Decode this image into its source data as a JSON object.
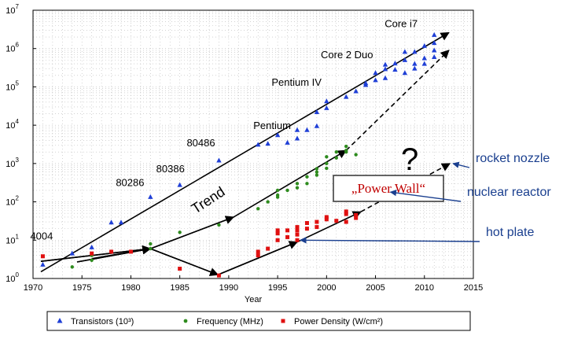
{
  "chart_data": {
    "type": "scatter",
    "xlabel": "Year",
    "ylabel": "",
    "xlim": [
      1970,
      2015
    ],
    "ylim": [
      1,
      10000000
    ],
    "yscale": "log",
    "grid": true,
    "x_ticks": [
      "1970",
      "1975",
      "1980",
      "1985",
      "1990",
      "1995",
      "2000",
      "2005",
      "2010",
      "2015"
    ],
    "y_ticks": [
      {
        "base": "10",
        "exp": "0"
      },
      {
        "base": "10",
        "exp": "1"
      },
      {
        "base": "10",
        "exp": "2"
      },
      {
        "base": "10",
        "exp": "3"
      },
      {
        "base": "10",
        "exp": "4"
      },
      {
        "base": "10",
        "exp": "5"
      },
      {
        "base": "10",
        "exp": "6"
      },
      {
        "base": "10",
        "exp": "7"
      }
    ],
    "series": [
      {
        "name": "Transistors (10³)",
        "color": "#1f3fd6",
        "marker": "triangle",
        "points": [
          [
            1971,
            2.3
          ],
          [
            1974,
            4.5
          ],
          [
            1976,
            6.5
          ],
          [
            1978,
            29
          ],
          [
            1979,
            29
          ],
          [
            1982,
            134
          ],
          [
            1985,
            275
          ],
          [
            1989,
            1200
          ],
          [
            1993,
            3100
          ],
          [
            1994,
            3300
          ],
          [
            1995,
            5500
          ],
          [
            1996,
            3500
          ],
          [
            1997,
            4500
          ],
          [
            1997,
            7500
          ],
          [
            1998,
            7500
          ],
          [
            1999,
            9500
          ],
          [
            1999,
            22000
          ],
          [
            2000,
            42000
          ],
          [
            2000,
            28000
          ],
          [
            2002,
            55000
          ],
          [
            2003,
            77000
          ],
          [
            2004,
            112000
          ],
          [
            2004,
            125000
          ],
          [
            2005,
            230000
          ],
          [
            2005,
            150000
          ],
          [
            2006,
            290000
          ],
          [
            2006,
            380000
          ],
          [
            2006,
            170000
          ],
          [
            2007,
            280000
          ],
          [
            2007,
            410000
          ],
          [
            2008,
            820000
          ],
          [
            2008,
            230000
          ],
          [
            2008,
            500000
          ],
          [
            2009,
            820000
          ],
          [
            2009,
            400000
          ],
          [
            2009,
            300000
          ],
          [
            2010,
            1170000
          ],
          [
            2010,
            400000
          ],
          [
            2010,
            560000
          ],
          [
            2011,
            2270000
          ],
          [
            2011,
            1400000
          ],
          [
            2011,
            900000
          ],
          [
            2011,
            600000
          ]
        ]
      },
      {
        "name": "Frequency (MHz)",
        "color": "#2e8b1e",
        "marker": "circle",
        "points": [
          [
            1974,
            2
          ],
          [
            1976,
            3
          ],
          [
            1976,
            4
          ],
          [
            1982,
            8
          ],
          [
            1982,
            6
          ],
          [
            1985,
            16
          ],
          [
            1989,
            25
          ],
          [
            1993,
            66
          ],
          [
            1994,
            100
          ],
          [
            1995,
            133
          ],
          [
            1995,
            150
          ],
          [
            1995,
            200
          ],
          [
            1996,
            200
          ],
          [
            1997,
            233
          ],
          [
            1997,
            300
          ],
          [
            1998,
            300
          ],
          [
            1998,
            450
          ],
          [
            1999,
            500
          ],
          [
            1999,
            600
          ],
          [
            1999,
            733
          ],
          [
            2000,
            1000
          ],
          [
            2000,
            1500
          ],
          [
            2001,
            1400
          ],
          [
            2002,
            2000
          ],
          [
            2002,
            2800
          ],
          [
            2003,
            1700
          ],
          [
            2002,
            2200
          ],
          [
            2001,
            2000
          ],
          [
            2000,
            750
          ]
        ]
      },
      {
        "name": "Power Density (W/cm²)",
        "color": "#e01010",
        "marker": "square",
        "points": [
          [
            1971,
            3.8
          ],
          [
            1976,
            4.5
          ],
          [
            1978,
            5
          ],
          [
            1980,
            5
          ],
          [
            1985,
            1.8
          ],
          [
            1989,
            1.2
          ],
          [
            1993,
            4
          ],
          [
            1993,
            5
          ],
          [
            1994,
            6
          ],
          [
            1995,
            10
          ],
          [
            1995,
            15
          ],
          [
            1995,
            18
          ],
          [
            1996,
            12
          ],
          [
            1996,
            18
          ],
          [
            1997,
            10
          ],
          [
            1997,
            14
          ],
          [
            1997,
            18
          ],
          [
            1997,
            22
          ],
          [
            1998,
            20
          ],
          [
            1998,
            28
          ],
          [
            1999,
            22
          ],
          [
            1999,
            30
          ],
          [
            2000,
            35
          ],
          [
            2000,
            40
          ],
          [
            2001,
            32
          ],
          [
            2002,
            48
          ],
          [
            2002,
            56
          ],
          [
            2003,
            38
          ],
          [
            2003,
            45
          ],
          [
            2002,
            30
          ]
        ]
      }
    ],
    "annotations": [
      {
        "text": "4004",
        "x": 1971,
        "y": 2.3
      },
      {
        "text": "80286",
        "x": 1982,
        "y": 134
      },
      {
        "text": "80386",
        "x": 1985,
        "y": 275
      },
      {
        "text": "80486",
        "x": 1989,
        "y": 1200
      },
      {
        "text": "Pentium",
        "x": 1993,
        "y": 3100
      },
      {
        "text": "Pentium IV",
        "x": 2000,
        "y": 42000
      },
      {
        "text": "Core 2 Duo",
        "x": 2006,
        "y": 290000
      },
      {
        "text": "Core i7",
        "x": 2011,
        "y": 2270000
      }
    ],
    "trend_label": "Trend",
    "trend_lines": [
      {
        "style": "solid",
        "points": [
          [
            1970.8,
            1.5
          ],
          [
            2012.5,
            2600000
          ]
        ]
      },
      {
        "style": "solid",
        "points": [
          [
            1974.5,
            2.7
          ],
          [
            1982,
            6
          ],
          [
            1990.5,
            40
          ],
          [
            2002,
            2200
          ]
        ]
      },
      {
        "style": "dashed",
        "points": [
          [
            2002,
            2200
          ],
          [
            2012.5,
            900000
          ]
        ]
      },
      {
        "style": "solid",
        "points": [
          [
            1976,
            3.3
          ],
          [
            1982,
            6
          ]
        ]
      },
      {
        "style": "solid",
        "points": [
          [
            1970.8,
            2.8
          ],
          [
            1982,
            6
          ],
          [
            1988.9,
            1.25
          ],
          [
            1997,
            9
          ],
          [
            2003.5,
            55
          ]
        ]
      },
      {
        "style": "dashed",
        "points": [
          [
            2003.5,
            55
          ],
          [
            2012.6,
            1000
          ]
        ]
      }
    ],
    "question_mark": "?",
    "power_wall_label": "„Power Wall“",
    "side_labels": [
      {
        "text": "rocket nozzle",
        "x": 2012.6,
        "y": 1000
      },
      {
        "text": "nuclear reactor",
        "x": 2006.2,
        "y": 180
      },
      {
        "text": "hot plate",
        "x": 1997,
        "y": 10
      }
    ]
  }
}
